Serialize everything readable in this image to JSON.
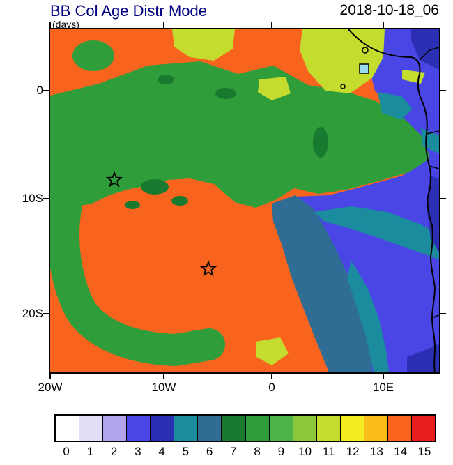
{
  "header": {
    "title": "BB Col Age Distr Mode",
    "units_label": "(days)",
    "timestamp": "2018-10-18_06"
  },
  "map": {
    "x_tick_labels": [
      "20W",
      "10W",
      "0",
      "10E"
    ],
    "y_tick_labels": [
      "0",
      "10S",
      "20S"
    ]
  },
  "colorbar": {
    "labels": [
      "0",
      "1",
      "2",
      "3",
      "4",
      "5",
      "6",
      "7",
      "8",
      "9",
      "10",
      "11",
      "12",
      "13",
      "14",
      "15"
    ],
    "colors": [
      "#ffffff",
      "#e3ddf7",
      "#b3a5ec",
      "#4a46e6",
      "#2a2fb4",
      "#1b8b9e",
      "#2f6d94",
      "#187a2e",
      "#2f9e3a",
      "#4db548",
      "#8cc83c",
      "#c3dc2e",
      "#f5ec20",
      "#f9bc1a",
      "#f8641e",
      "#e81c1c"
    ]
  },
  "chart_data": {
    "type": "heatmap",
    "title": "BB Col Age Distr Mode",
    "units": "days",
    "timestamp": "2018-10-18_06",
    "projection": "lat-lon map of the South Atlantic / western-southern Africa",
    "x_axis": {
      "ticks": [
        "20W",
        "10W",
        "0",
        "10E"
      ],
      "range": [
        "20W",
        "15E"
      ]
    },
    "y_axis": {
      "ticks": [
        "0",
        "10S",
        "20S"
      ],
      "range": [
        "5N",
        "25S"
      ]
    },
    "legend_position": "bottom horizontal colorbar",
    "colorbar": {
      "values": [
        0,
        1,
        2,
        3,
        4,
        5,
        6,
        7,
        8,
        9,
        10,
        11,
        12,
        13,
        14,
        15
      ],
      "colors": [
        "#ffffff",
        "#e3ddf7",
        "#b3a5ec",
        "#4a46e6",
        "#2a2fb4",
        "#1b8b9e",
        "#2f6d94",
        "#187a2e",
        "#2f9e3a",
        "#4db548",
        "#8cc83c",
        "#c3dc2e",
        "#f5ec20",
        "#f9bc1a",
        "#f8641e",
        "#e81c1c"
      ]
    },
    "markers": [
      {
        "symbol": "open-star",
        "lon": "~14W",
        "lat": "~8S"
      },
      {
        "symbol": "open-star",
        "lon": "~6W",
        "lat": "~16S"
      },
      {
        "symbol": "small-blue-square",
        "lon": "~9E",
        "lat": "~2N"
      }
    ],
    "regions": [
      {
        "value": 14,
        "color_name": "orange",
        "description": "dominant mode age over most of the basin: top-left corner, central gyre and the whole southern half west of ~5E"
      },
      {
        "value": 8,
        "color_name": "green",
        "description": "broad band across the north (~2N-4S) reaching east to ~13E, plus a C-shaped mass hugging the west side from ~5S to ~22S"
      },
      {
        "value": 11,
        "color_name": "yellow-green",
        "description": "patches along the top edge near 9W-4W, ~0E, a large patch 3E-10E, small patch near 1W 23S"
      },
      {
        "value": 7,
        "color_name": "dark green",
        "description": "speckles inside the green mass near 12W-8W / 8-10S and a streak near 4E 3-6S"
      },
      {
        "value": 6,
        "color_name": "dark slate teal",
        "description": "diagonal band from ~0E 10S widening southeast to ~8E 25S"
      },
      {
        "value": 5,
        "color_name": "teal",
        "description": "streaks flanking the slate band and small patches in the northeast blue zone"
      },
      {
        "value": 3,
        "color_name": "blue",
        "description": "large region in the east and over the African coast east of ~8E"
      },
      {
        "value": 4,
        "color_name": "dark blue",
        "description": "patches at the far northeast corner and along the eastern edge"
      }
    ]
  }
}
